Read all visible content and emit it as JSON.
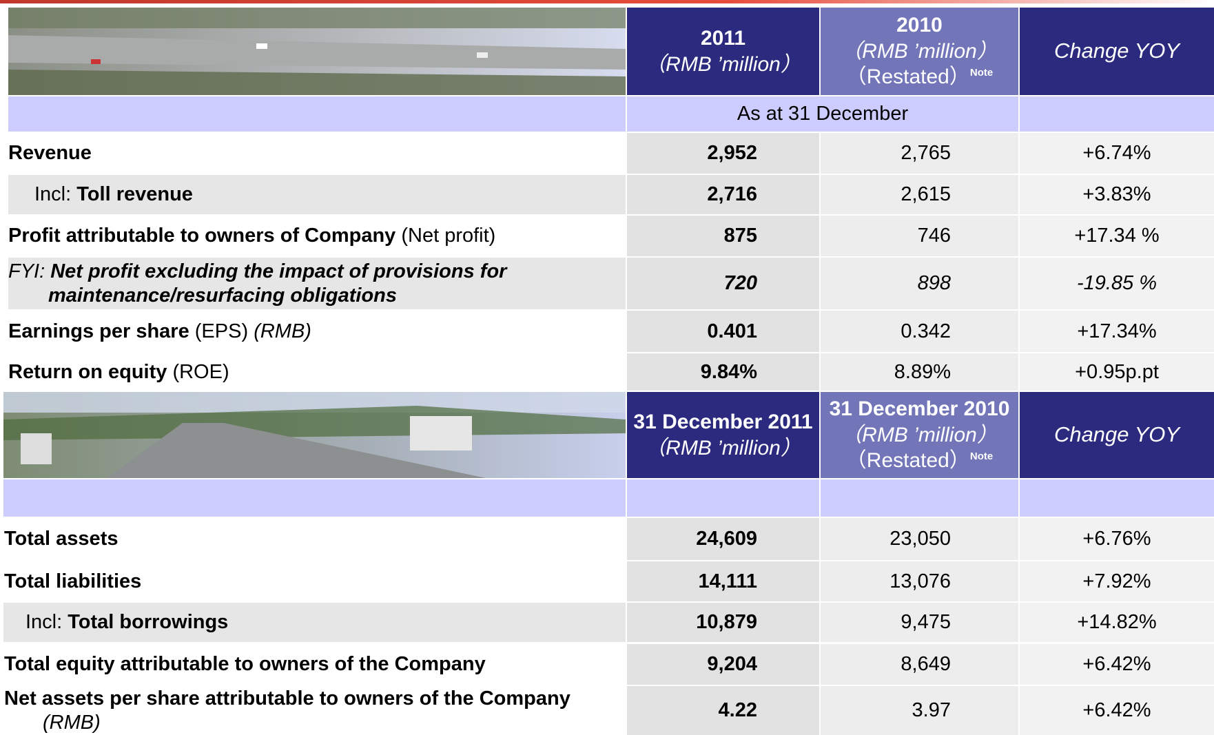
{
  "top": {
    "headers": [
      {
        "title": "2011",
        "unit": "（RMB ’million）"
      },
      {
        "title": "2010",
        "unit": "（RMB ’million）",
        "restated": "（Restated）",
        "note": "Note"
      },
      {
        "title": "Change YOY"
      }
    ],
    "period": "As at 31 December",
    "rows": [
      {
        "label": [
          "Revenue"
        ],
        "values": [
          "2,952",
          "2,765",
          "+6.74%"
        ]
      },
      {
        "label": [
          "Incl: ",
          "Toll revenue"
        ],
        "values": [
          "2,716",
          "2,615",
          "+3.83%"
        ]
      },
      {
        "label": [
          "Profit attributable to owners of Company",
          " (Net profit)"
        ],
        "values": [
          "875",
          "746",
          "+17.34 %"
        ]
      },
      {
        "label": [
          "FYI: ",
          "Net profit excluding the impact of provisions for maintenance/resurfacing obligations"
        ],
        "values": [
          "720",
          "898",
          "-19.85 %"
        ]
      },
      {
        "label": [
          "Earnings per share",
          " (EPS) ",
          "(RMB)"
        ],
        "values": [
          "0.401",
          "0.342",
          "+17.34%"
        ]
      },
      {
        "label": [
          "Return on equity",
          " (ROE)"
        ],
        "values": [
          "9.84%",
          "8.89%",
          "+0.95p.pt"
        ]
      }
    ]
  },
  "bottom": {
    "headers": [
      {
        "title": "31 December 2011",
        "unit": "（RMB ’million）"
      },
      {
        "title": "31 December 2010",
        "unit": "（RMB ’million）",
        "restated": "（Restated）",
        "note": "Note"
      },
      {
        "title": "Change YOY"
      }
    ],
    "rows": [
      {
        "label": [
          "Total assets"
        ],
        "values": [
          "24,609",
          "23,050",
          "+6.76%"
        ]
      },
      {
        "label": [
          "Total liabilities"
        ],
        "values": [
          "14,111",
          "13,076",
          "+7.92%"
        ]
      },
      {
        "label": [
          "Incl: ",
          "Total borrowings"
        ],
        "values": [
          "10,879",
          "9,475",
          "+14.82%"
        ]
      },
      {
        "label": [
          "Total equity attributable to owners of the Company"
        ],
        "values": [
          "9,204",
          "8,649",
          "+6.42%"
        ]
      },
      {
        "label": [
          "Net assets per share attributable to owners of the Company",
          " (RMB)"
        ],
        "values": [
          "4.22",
          "3.97",
          "+6.42%"
        ]
      }
    ]
  }
}
